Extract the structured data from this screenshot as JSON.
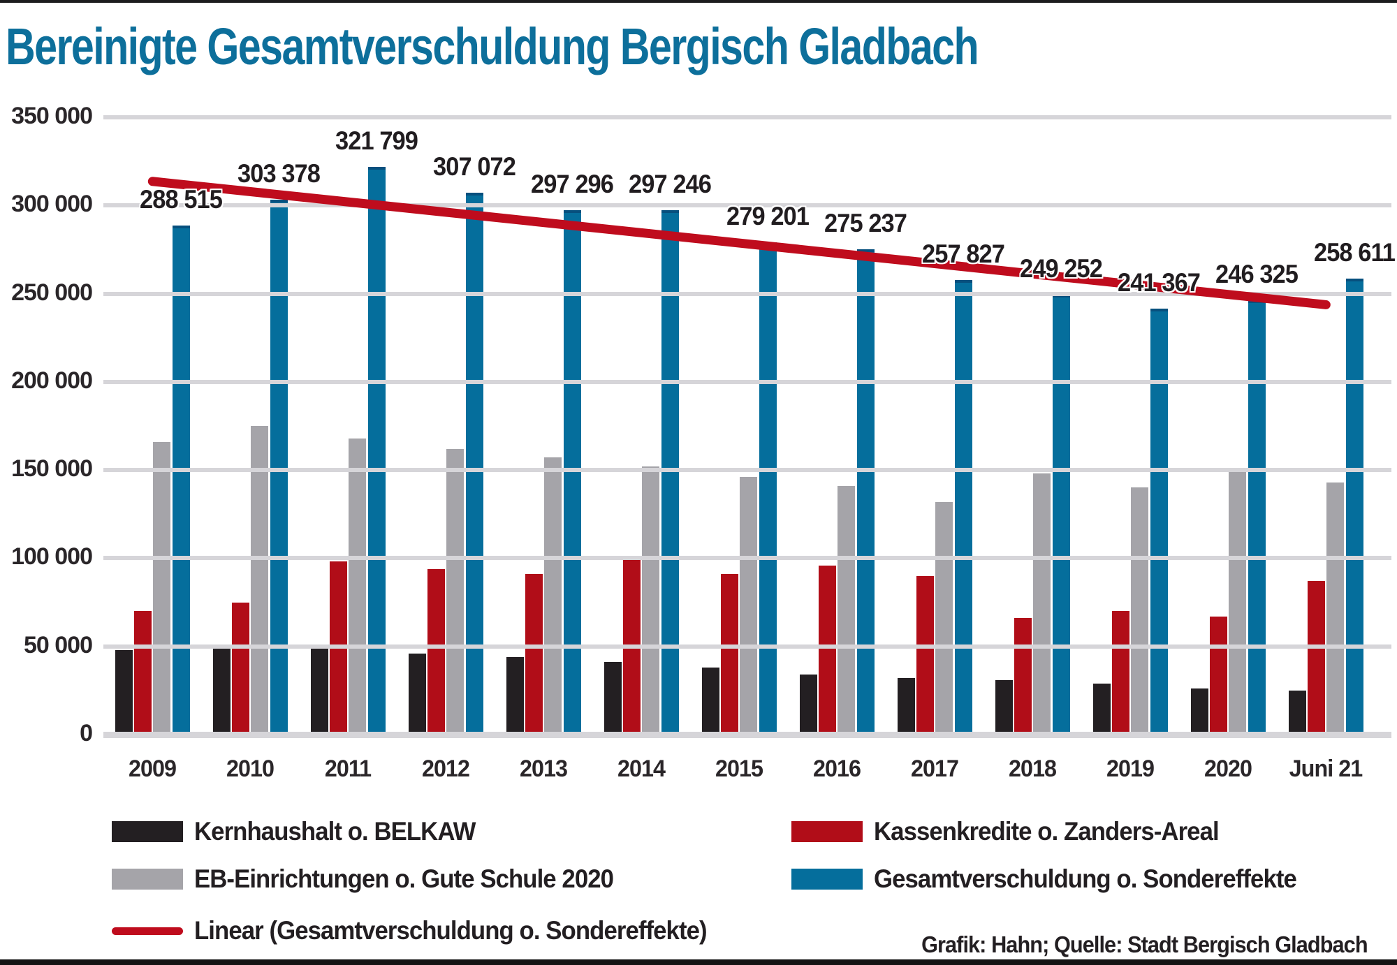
{
  "title": "Bereinigte Gesamtverschuldung Bergisch Gladbach",
  "source": "Grafik: Hahn; Quelle: Stadt Bergisch Gladbach",
  "colors": {
    "title": "#0d6f9b",
    "kernhaushalt": "#231f22",
    "kassenkredite": "#b10d18",
    "eb_einrichtungen": "#a5a4a9",
    "gesamtverschuldung": "#056e9c",
    "trendline": "#bf0c1d",
    "gridline": "#d6d5d9",
    "label_text": "#211d20"
  },
  "chart_data": {
    "type": "bar",
    "title": "Bereinigte Gesamtverschuldung Bergisch Gladbach",
    "categories": [
      "2009",
      "2010",
      "2011",
      "2012",
      "2013",
      "2014",
      "2015",
      "2016",
      "2017",
      "2018",
      "2019",
      "2020",
      "Juni 21"
    ],
    "series": [
      {
        "name": "Kernhaushalt o. BELKAW",
        "color": "#231f22",
        "values": [
          48000,
          49000,
          49000,
          46000,
          44000,
          41000,
          38000,
          34000,
          32000,
          31000,
          29000,
          26000,
          25000
        ]
      },
      {
        "name": "Kassenkredite o. Zanders-Areal",
        "color": "#b10d18",
        "values": [
          70000,
          75000,
          98000,
          94000,
          91000,
          99000,
          91000,
          96000,
          90000,
          66000,
          70000,
          67000,
          87000
        ]
      },
      {
        "name": "EB-Einrichtungen o. Gute Schule 2020",
        "color": "#a5a4a9",
        "values": [
          166000,
          175000,
          168000,
          162000,
          157000,
          152000,
          146000,
          141000,
          132000,
          148000,
          140000,
          149000,
          143000
        ]
      },
      {
        "name": "Gesamtverschuldung o. Sondereffekte",
        "color": "#056e9c",
        "values": [
          288515,
          303378,
          321799,
          307072,
          297296,
          297246,
          279201,
          275237,
          257827,
          249252,
          241367,
          246325,
          258611
        ],
        "labels": [
          "288 515",
          "303 378",
          "321 799",
          "307 072",
          "297 296",
          "297 246",
          "279 201",
          "275 237",
          "257 827",
          "249 252",
          "241 367",
          "246 325",
          "258 611"
        ]
      }
    ],
    "trendline": {
      "name": "Linear (Gesamtverschuldung o. Sondereffekte)",
      "color": "#bf0c1d",
      "start_value": 313674,
      "end_value": 243730
    },
    "ylim": [
      0,
      350000
    ],
    "ytick_step": 50000,
    "ytick_labels": [
      "0",
      "50 000",
      "100 000",
      "150 000",
      "200 000",
      "250 000",
      "300 000",
      "350 000"
    ],
    "grid": true,
    "legend_position": "bottom"
  },
  "legend": {
    "items": [
      {
        "label": "Kernhaushalt o. BELKAW",
        "swatch": "kernhaushalt"
      },
      {
        "label": "Kassenkredite o. Zanders-Areal",
        "swatch": "kassenkredite"
      },
      {
        "label": "EB-Einrichtungen o. Gute Schule 2020",
        "swatch": "eb_einrichtungen"
      },
      {
        "label": "Gesamtverschuldung o. Sondereffekte",
        "swatch": "gesamtverschuldung"
      },
      {
        "label": "Linear (Gesamtverschuldung o. Sondereffekte)",
        "swatch": "trendline"
      }
    ]
  }
}
